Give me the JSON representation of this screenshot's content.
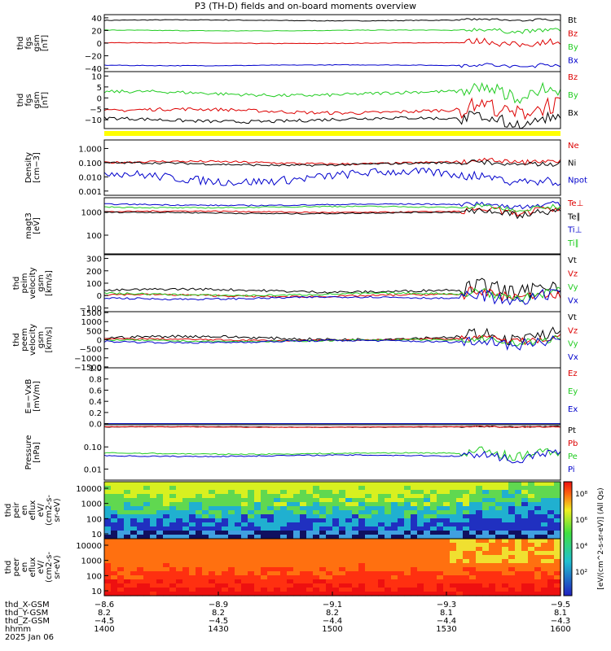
{
  "title": "P3 (TH-D) fields and on-board moments overview",
  "colors": {
    "black": "#000000",
    "red": "#dd0000",
    "green": "#22cc22",
    "blue": "#0000cc",
    "yellow": "#ffff00"
  },
  "chart_data": {
    "type": "line",
    "panels": [
      {
        "id": "fgs_gsm",
        "ylabel": [
          "thd",
          "fgs",
          "gsm",
          "[nT]"
        ],
        "ylim": [
          -45,
          45
        ],
        "yticks": [
          {
            "v": 40,
            "t": "40"
          },
          {
            "v": 20,
            "t": "20"
          },
          {
            "v": 0,
            "t": "0"
          },
          {
            "v": -20,
            "t": "−20"
          },
          {
            "v": -40,
            "t": "−40"
          }
        ],
        "log": false,
        "series": [
          {
            "name": "Bt",
            "color": "black",
            "base": 36,
            "amp": 1.2,
            "late": 3
          },
          {
            "name": "Bz",
            "color": "red",
            "base": 0,
            "amp": 1,
            "late": 10
          },
          {
            "name": "By",
            "color": "green",
            "base": 20,
            "amp": 1,
            "late": 6
          },
          {
            "name": "Bx",
            "color": "blue",
            "base": -35,
            "amp": 1,
            "late": 6
          }
        ]
      },
      {
        "id": "fgs_gsm_zoom",
        "ylabel": [
          "thd",
          "fgs",
          "gsm",
          "[nT]"
        ],
        "ylim": [
          -14,
          12
        ],
        "yticks": [
          {
            "v": 10,
            "t": "10"
          },
          {
            "v": 5,
            "t": "5"
          },
          {
            "v": 0,
            "t": "0"
          },
          {
            "v": -5,
            "t": "−5"
          },
          {
            "v": -10,
            "t": "−10"
          }
        ],
        "log": false,
        "series": [
          {
            "name": "Bz",
            "color": "red",
            "base": -6,
            "amp": 1.5,
            "late": 8
          },
          {
            "name": "By",
            "color": "green",
            "base": 2,
            "amp": 1.5,
            "late": 6
          },
          {
            "name": "Bx",
            "color": "black",
            "base": -10,
            "amp": 1.5,
            "late": 5
          }
        ]
      },
      {
        "id": "density",
        "ylabel": [
          "Density",
          "[cm−3]"
        ],
        "ylim": [
          -3.3,
          0.6
        ],
        "yticks": [
          {
            "v": 0,
            "t": "1.000"
          },
          {
            "v": -1,
            "t": "0.100"
          },
          {
            "v": -2,
            "t": "0.010"
          },
          {
            "v": -3,
            "t": "0.001"
          }
        ],
        "log": true,
        "series": [
          {
            "name": "Ne",
            "color": "red",
            "base": -1,
            "amp": 0.15,
            "late": 0.3
          },
          {
            "name": "Ni",
            "color": "black",
            "base": -1.1,
            "amp": 0.15,
            "late": 0.3
          },
          {
            "name": "Npot",
            "color": "blue",
            "base": -2,
            "amp": 0.6,
            "late": 0.2
          }
        ]
      },
      {
        "id": "temperature",
        "ylabel": [
          "magt3",
          "[eV]"
        ],
        "ylim": [
          1.2,
          3.6
        ],
        "yticks": [
          {
            "v": 3,
            "t": "1000"
          },
          {
            "v": 2,
            "t": "100"
          }
        ],
        "log": true,
        "series": [
          {
            "name": "Te⊥",
            "color": "red",
            "base": 3.0,
            "amp": 0.05,
            "late": 0.3
          },
          {
            "name": "Te∥",
            "color": "black",
            "base": 2.95,
            "amp": 0.05,
            "late": 0.3
          },
          {
            "name": "Ti⊥",
            "color": "blue",
            "base": 3.3,
            "amp": 0.05,
            "late": 0.2
          },
          {
            "name": "Ti∥",
            "color": "green",
            "base": 3.2,
            "amp": 0.05,
            "late": 0.2
          }
        ]
      },
      {
        "id": "peim_velocity",
        "ylabel": [
          "thd",
          "peim",
          "velocity",
          "gsm",
          "[km/s]"
        ],
        "ylim": [
          -130,
          330
        ],
        "yticks": [
          {
            "v": 300,
            "t": "300"
          },
          {
            "v": 200,
            "t": "200"
          },
          {
            "v": 100,
            "t": "100"
          },
          {
            "v": 0,
            "t": "0"
          },
          {
            "v": -100,
            "t": "−100"
          }
        ],
        "log": false,
        "series": [
          {
            "name": "Vt",
            "color": "black",
            "base": 40,
            "amp": 20,
            "late": 120
          },
          {
            "name": "Vz",
            "color": "red",
            "base": 0,
            "amp": 15,
            "late": 80
          },
          {
            "name": "Vy",
            "color": "green",
            "base": 10,
            "amp": 15,
            "late": 80
          },
          {
            "name": "Vx",
            "color": "blue",
            "base": -20,
            "amp": 15,
            "late": 100
          }
        ]
      },
      {
        "id": "peem_velocity",
        "ylabel": [
          "thd",
          "peem",
          "velocity",
          "gsm",
          "[km/s]"
        ],
        "ylim": [
          -1550,
          1550
        ],
        "yticks": [
          {
            "v": 1500,
            "t": "1500"
          },
          {
            "v": 1000,
            "t": "1000"
          },
          {
            "v": 500,
            "t": "500"
          },
          {
            "v": 0,
            "t": "0"
          },
          {
            "v": -500,
            "t": "−500"
          },
          {
            "v": -1000,
            "t": "−1000"
          },
          {
            "v": -1500,
            "t": "−1500"
          }
        ],
        "log": false,
        "series": [
          {
            "name": "Vt",
            "color": "black",
            "base": 100,
            "amp": 150,
            "late": 700
          },
          {
            "name": "Vz",
            "color": "red",
            "base": 0,
            "amp": 80,
            "late": 400
          },
          {
            "name": "Vy",
            "color": "green",
            "base": -50,
            "amp": 80,
            "late": 400
          },
          {
            "name": "Vx",
            "color": "blue",
            "base": -100,
            "amp": 100,
            "late": 600
          }
        ]
      },
      {
        "id": "efield",
        "ylabel": [
          "E=−VxB",
          "[mV/m]"
        ],
        "ylim": [
          -0.02,
          1.0
        ],
        "yticks": [
          {
            "v": 1.0,
            "t": "1.0"
          },
          {
            "v": 0.8,
            "t": "0.8"
          },
          {
            "v": 0.6,
            "t": "0.6"
          },
          {
            "v": 0.4,
            "t": "0.4"
          },
          {
            "v": 0.2,
            "t": "0.2"
          },
          {
            "v": 0.0,
            "t": "0.0"
          }
        ],
        "log": false,
        "series": [
          {
            "name": "Ez",
            "color": "red",
            "base": 0,
            "amp": 0,
            "late": 0
          },
          {
            "name": "Ey",
            "color": "green",
            "base": 0,
            "amp": 0,
            "late": 0
          },
          {
            "name": "Ex",
            "color": "blue",
            "base": 0,
            "amp": 0,
            "late": 0
          }
        ]
      },
      {
        "id": "pressure",
        "ylabel": [
          "Pressure",
          "[nPa]"
        ],
        "ylim": [
          -2.5,
          0
        ],
        "yticks": [
          {
            "v": -1,
            "t": "0.10"
          },
          {
            "v": -2,
            "t": "0.01"
          }
        ],
        "log": true,
        "series": [
          {
            "name": "Pt",
            "color": "black",
            "base": -0.1,
            "amp": 0.02,
            "late": 0.05
          },
          {
            "name": "Pb",
            "color": "red",
            "base": -0.1,
            "amp": 0.02,
            "late": 0.05
          },
          {
            "name": "Pe",
            "color": "green",
            "base": -1.3,
            "amp": 0.05,
            "late": 0.4
          },
          {
            "name": "Pi",
            "color": "blue",
            "base": -1.4,
            "amp": 0.05,
            "late": 0.4
          }
        ]
      },
      {
        "id": "peir_eflux",
        "ylabel": [
          "thd",
          "peir",
          "en",
          "eflux",
          "eV/",
          "(cm2-s-",
          "sr-eV)"
        ],
        "kind": "spectrogram",
        "yticks": [
          {
            "t": "10000"
          },
          {
            "t": "1000"
          },
          {
            "t": "100"
          },
          {
            "t": "10"
          }
        ]
      },
      {
        "id": "peer_eflux",
        "ylabel": [
          "thd",
          "peer",
          "en",
          "eflux",
          "eV/",
          "(cm2-s-",
          "sr-eV)"
        ],
        "kind": "spectrogram",
        "yticks": [
          {
            "t": "10000"
          },
          {
            "t": "1000"
          },
          {
            "t": "100"
          },
          {
            "t": "10"
          }
        ]
      }
    ],
    "colorbar": {
      "label": "[eV/(cm^2-s-sr-eV)] (All Qs)",
      "ticks": [
        "10⁸",
        "10⁶",
        "10⁴",
        "10²"
      ]
    },
    "x_axis": {
      "rows": [
        {
          "label": "thd_X-GSM",
          "values": [
            "−8.6",
            "−8.9",
            "−9.1",
            "−9.3",
            "−9.5"
          ]
        },
        {
          "label": "thd_Y-GSM",
          "values": [
            "8.2",
            "8.2",
            "8.2",
            "8.1",
            "8.1"
          ]
        },
        {
          "label": "thd_Z-GSM",
          "values": [
            "−4.5",
            "−4.5",
            "−4.4",
            "−4.4",
            "−4.3"
          ]
        },
        {
          "label": "hhmm",
          "values": [
            "1400",
            "1430",
            "1500",
            "1530",
            "1600"
          ]
        }
      ],
      "date": "2025 Jan 06"
    }
  }
}
